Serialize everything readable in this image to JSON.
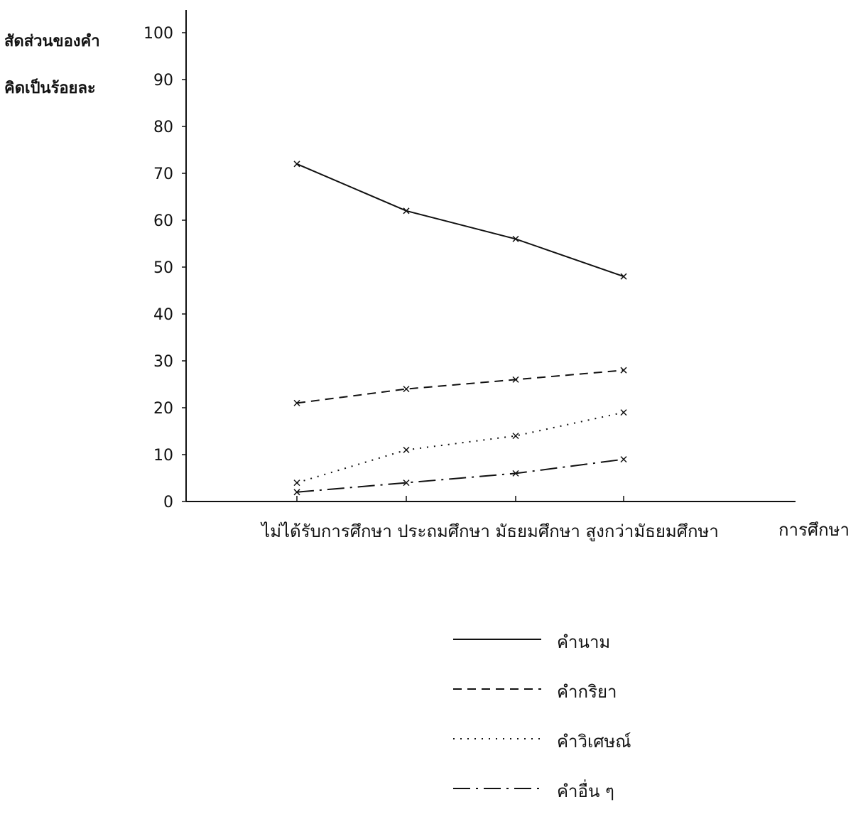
{
  "chart_data": {
    "type": "line",
    "ylabel_lines": [
      "สัดส่วนของคำ",
      "คิดเป็นร้อยละ"
    ],
    "xlabel": "การศึกษา",
    "categories": [
      "ไม่ได้รับการศึกษา",
      "ประถมศึกษา",
      "มัธยมศึกษา",
      "สูงกว่ามัธยมศึกษา"
    ],
    "categories_text": "ไม่ได้รับการศึกษา ประถมศึกษา มัธยมศึกษา สูงกว่ามัธยมศึกษา",
    "ylim": [
      0,
      100
    ],
    "yticks": [
      0,
      10,
      20,
      30,
      40,
      50,
      60,
      70,
      80,
      90,
      100
    ],
    "grid": false,
    "legend_position": "bottom",
    "series": [
      {
        "name": "คำนาม",
        "style": "solid",
        "values": [
          72,
          62,
          56,
          48
        ]
      },
      {
        "name": "คำกริยา",
        "style": "dashed",
        "values": [
          21,
          24,
          26,
          28
        ]
      },
      {
        "name": "คำวิเศษณ์",
        "style": "dotted",
        "values": [
          4,
          11,
          14,
          19
        ]
      },
      {
        "name": "คำอื่น ๆ",
        "style": "dashdot",
        "values": [
          2,
          4,
          6,
          9
        ]
      }
    ],
    "line_color": "#111111"
  }
}
